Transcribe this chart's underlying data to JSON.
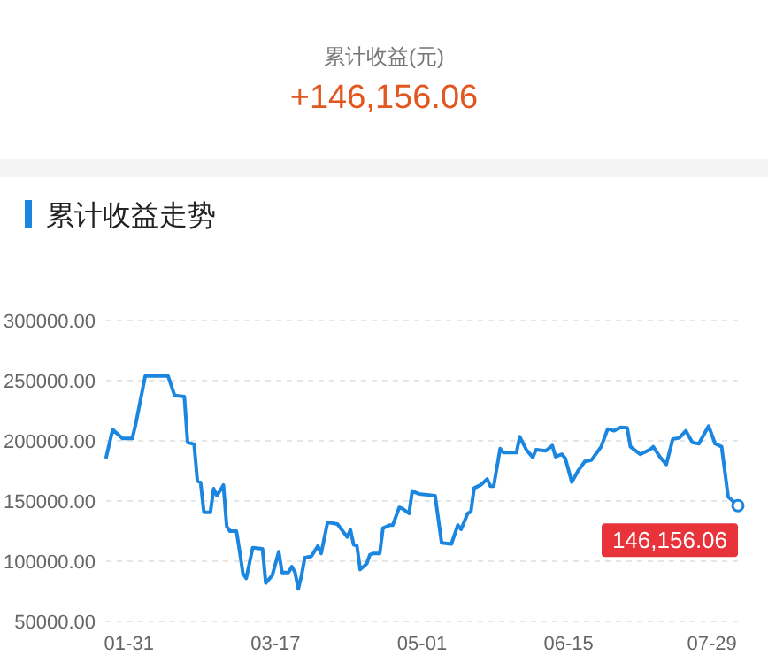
{
  "chart_data": {
    "type": "line",
    "title": "累计收益走势",
    "annotations": [
      "累计收益(元)",
      "+146,156.06",
      {
        "text": "146,156.06",
        "x": "--08-06",
        "y": 146156.06
      }
    ],
    "x": [
      "--01-24",
      "--01-26",
      "--01-29",
      "--02-01",
      "--02-02",
      "--02-05",
      "--02-12",
      "--02-14",
      "--02-17",
      "--02-18",
      "--02-20",
      "--02-21",
      "--02-22",
      "--02-23",
      "--02-25",
      "--02-26",
      "--02-27",
      "--03-01",
      "--03-02",
      "--03-03",
      "--03-05",
      "--03-06",
      "--03-07",
      "--03-08",
      "--03-10",
      "--03-13",
      "--03-14",
      "--03-16",
      "--03-18",
      "--03-19",
      "--03-21",
      "--03-22",
      "--03-23",
      "--03-24",
      "--03-25",
      "--03-26",
      "--03-28",
      "--03-30",
      "--03-31",
      "--04-02",
      "--04-05",
      "--04-08",
      "--04-09",
      "--04-10",
      "--04-11",
      "--04-12",
      "--04-14",
      "--04-15",
      "--04-16",
      "--04-18",
      "--04-19",
      "--04-21",
      "--04-22",
      "--04-24",
      "--04-25",
      "--04-27",
      "--04-28",
      "--04-30",
      "--05-05",
      "--05-07",
      "--05-10",
      "--05-12",
      "--05-13",
      "--05-15",
      "--05-16",
      "--05-17",
      "--05-19",
      "--05-21",
      "--05-22",
      "--05-23",
      "--05-25",
      "--05-26",
      "--05-28",
      "--05-30",
      "--05-31",
      "--06-02",
      "--06-04",
      "--06-05",
      "--06-08",
      "--06-10",
      "--06-11",
      "--06-13",
      "--06-14",
      "--06-16",
      "--06-18",
      "--06-20",
      "--06-22",
      "--06-25",
      "--06-27",
      "--06-29",
      "--07-01",
      "--07-03",
      "--07-04",
      "--07-07",
      "--07-10",
      "--07-11",
      "--07-13",
      "--07-15",
      "--07-17",
      "--07-19",
      "--07-21",
      "--07-23",
      "--07-25",
      "--07-28",
      "--07-30",
      "--08-01",
      "--08-03",
      "--08-06"
    ],
    "series": [
      {
        "color": "#1a86e0",
        "values": [
          186300,
          209400,
          202000,
          202000,
          213000,
          253900,
          253900,
          237700,
          236800,
          198600,
          197100,
          166700,
          165200,
          140700,
          140700,
          160300,
          154400,
          163300,
          128900,
          125000,
          125000,
          107900,
          89700,
          85800,
          111300,
          110300,
          81900,
          88300,
          107900,
          90700,
          90700,
          95600,
          90700,
          77000,
          88300,
          103000,
          104000,
          112700,
          106400,
          132400,
          130900,
          120100,
          126000,
          113700,
          112700,
          93100,
          98000,
          105400,
          106400,
          106400,
          127500,
          129900,
          130000,
          144700,
          143700,
          139700,
          158400,
          155900,
          154500,
          115200,
          114300,
          130000,
          126500,
          139700,
          141200,
          160800,
          163300,
          168200,
          162300,
          162300,
          193600,
          190200,
          190200,
          190200,
          203400,
          192700,
          186300,
          192700,
          191700,
          196100,
          186800,
          188800,
          185300,
          165700,
          175500,
          182900,
          183900,
          195100,
          209800,
          208400,
          211300,
          210800,
          195100,
          188800,
          192700,
          195100,
          186800,
          180400,
          201500,
          202500,
          208400,
          198600,
          197600,
          212300,
          197600,
          195100,
          153500,
          146156.06
        ]
      }
    ],
    "xlim": [
      "--01-24",
      "--08-06"
    ],
    "xticks": [
      {
        "value": "--01-31",
        "label": "01-31"
      },
      {
        "value": "--03-17",
        "label": "03-17"
      },
      {
        "value": "--05-01",
        "label": "05-01"
      },
      {
        "value": "--06-15",
        "label": "06-15"
      },
      {
        "value": "--07-29",
        "label": "07-29"
      }
    ],
    "ylim": [
      50000,
      300000
    ],
    "yticks": [
      {
        "value": 50000,
        "label": "50000.00"
      },
      {
        "value": 100000,
        "label": "100000.00"
      },
      {
        "value": 150000,
        "label": "150000.00"
      },
      {
        "value": 200000,
        "label": "200000.00"
      },
      {
        "value": 250000,
        "label": "250000.00"
      },
      {
        "value": 300000,
        "label": "300000.00"
      }
    ],
    "grid": "y"
  }
}
